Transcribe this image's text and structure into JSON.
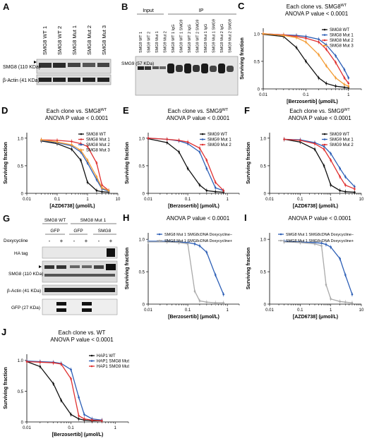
{
  "colors": {
    "black": "#111111",
    "blue": "#2d5fb6",
    "red": "#e03030",
    "orange": "#f39c34",
    "grey": "#aaaaaa"
  },
  "panels": {
    "A": {
      "label": "A",
      "lanes": [
        "SMG8 WT 1",
        "SMG8 WT 2",
        "SMG8 Mut 1",
        "SMG8 Mut 2",
        "SMG8 Mut 3"
      ],
      "rows": [
        "SMG8 (110 KDa)",
        "β-Actin (41 KDa)"
      ]
    },
    "B": {
      "label": "B",
      "input_label": "Input",
      "ip_label": "IP",
      "row": "SMG9 (57 KDa)",
      "lanes": [
        "SMG9 WT 1",
        "SMG9 WT 2",
        "SMG9 Mut 1",
        "SMG9 Mut 2",
        "SMG9 WT 1 IgG",
        "SMG9 WT 1 SMG9",
        "SMG9 WT 2 IgG",
        "SMG9 WT 2 SMG9",
        "SMG9 Mut 1 IgG",
        "SMG9 Mut 1 SMG9",
        "SMG9 Mut 2 IgG",
        "SMG9 Mut 2 SMG9"
      ]
    },
    "G": {
      "label": "G",
      "group1": "SMG8 WT",
      "group2": "SMG8 Mut 1",
      "sub": [
        "GFP",
        "GFP",
        "SMG8"
      ],
      "dox_label": "Doxycycline",
      "dox": [
        "-",
        "+",
        "-",
        "+",
        "-",
        "+"
      ],
      "rows": [
        "HA tag",
        "SMG8 (110 KDa)",
        "β-Actin (41 KDa)",
        "GFP (27 KDa)"
      ]
    }
  },
  "chart_data": [
    {
      "id": "C",
      "label": "C",
      "type": "line",
      "title_line1": "Each clone vs. SMG8",
      "title_sup": "WT",
      "title_line2": "ANOVA P value < 0.0001",
      "xlabel": "[Berzosertib] (μmol/L)",
      "ylabel": "Surviving fraction",
      "xscale": "log",
      "xlim": [
        0.01,
        2
      ],
      "ylim": [
        0,
        1.1
      ],
      "xticks": [
        0.01,
        0.1,
        1
      ],
      "xticklabels": [
        "0.01",
        "0.1",
        "1"
      ],
      "yticks": [
        0,
        0.5,
        1
      ],
      "yticklabels": [
        "0",
        "0.5",
        "1.0"
      ],
      "legend": "top-right",
      "x": [
        0.01,
        0.03,
        0.06,
        0.1,
        0.2,
        0.3,
        0.5,
        0.8,
        1.0
      ],
      "series": [
        {
          "name": "SMG8 WT",
          "color": "#111111",
          "values": [
            0.99,
            0.95,
            0.75,
            0.5,
            0.2,
            0.1,
            0.05,
            0.03,
            0.02
          ]
        },
        {
          "name": "SMG8 Mut 1",
          "color": "#2d5fb6",
          "values": [
            1.0,
            0.98,
            0.97,
            0.95,
            0.9,
            0.8,
            0.6,
            0.35,
            0.2
          ]
        },
        {
          "name": "SMG8 Mut 2",
          "color": "#e03030",
          "values": [
            1.0,
            0.98,
            0.95,
            0.92,
            0.85,
            0.72,
            0.48,
            0.2,
            0.1
          ]
        },
        {
          "name": "SMG8 Mut 3",
          "color": "#f39c34",
          "values": [
            1.0,
            0.97,
            0.93,
            0.85,
            0.62,
            0.42,
            0.2,
            0.08,
            0.05
          ]
        }
      ]
    },
    {
      "id": "D",
      "label": "D",
      "type": "line",
      "title_line1": "Each clone vs. SMG8",
      "title_sup": "WT",
      "title_line2": "ANOVA P value < 0.0001",
      "xlabel": "[AZD6738] (μmol/L)",
      "ylabel": "Surviving fraction",
      "xscale": "log",
      "xlim": [
        0.01,
        10
      ],
      "ylim": [
        0,
        1.1
      ],
      "xticks": [
        0.01,
        0.1,
        1,
        10
      ],
      "xticklabels": [
        "0.01",
        "0.1",
        "1",
        "10"
      ],
      "yticks": [
        0,
        0.5,
        1
      ],
      "yticklabels": [
        "0",
        "0.5",
        "1.0"
      ],
      "legend": "top-right",
      "x": [
        0.03,
        0.1,
        0.3,
        0.6,
        1,
        2,
        3,
        5
      ],
      "series": [
        {
          "name": "SMG8 WT",
          "color": "#111111",
          "values": [
            0.95,
            0.9,
            0.8,
            0.6,
            0.2,
            0.05,
            0.03,
            0.02
          ]
        },
        {
          "name": "SMG8 Mut 1",
          "color": "#e03030",
          "values": [
            0.97,
            0.96,
            0.94,
            0.9,
            0.85,
            0.55,
            0.15,
            0.05
          ]
        },
        {
          "name": "SMG8 Mut 2",
          "color": "#2d5fb6",
          "values": [
            0.96,
            0.92,
            0.86,
            0.75,
            0.55,
            0.25,
            0.08,
            0.04
          ]
        },
        {
          "name": "SMG8 Mut 3",
          "color": "#f39c34",
          "values": [
            0.97,
            0.93,
            0.88,
            0.78,
            0.6,
            0.3,
            0.1,
            0.05
          ]
        }
      ]
    },
    {
      "id": "E",
      "label": "E",
      "type": "line",
      "title_line1": "Each clone vs. SMG9",
      "title_sup": "WT",
      "title_line2": "ANOVA P value < 0.0001",
      "xlabel": "[Berzosertib] (μmol/L)",
      "ylabel": "Surviving fraction",
      "xscale": "log",
      "xlim": [
        0.01,
        2
      ],
      "ylim": [
        0,
        1.1
      ],
      "xticks": [
        0.01,
        0.1,
        1
      ],
      "xticklabels": [
        "0.01",
        "0.1",
        "1"
      ],
      "yticks": [
        0,
        0.5,
        1
      ],
      "yticklabels": [
        "0",
        "0.5",
        "1.0"
      ],
      "legend": "top-right",
      "x": [
        0.01,
        0.03,
        0.06,
        0.1,
        0.2,
        0.3,
        0.5,
        0.8
      ],
      "series": [
        {
          "name": "SMG9 WT",
          "color": "#111111",
          "values": [
            0.99,
            0.92,
            0.75,
            0.45,
            0.15,
            0.05,
            0.03,
            0.02
          ]
        },
        {
          "name": "SMG9 Mut 1",
          "color": "#2d5fb6",
          "values": [
            1.0,
            0.98,
            0.95,
            0.9,
            0.75,
            0.45,
            0.1,
            0.05
          ]
        },
        {
          "name": "SMG9 Mut 2",
          "color": "#e03030",
          "values": [
            1.0,
            0.98,
            0.96,
            0.93,
            0.82,
            0.6,
            0.2,
            0.05
          ]
        }
      ]
    },
    {
      "id": "F",
      "label": "F",
      "type": "line",
      "title_line1": "Each clone vs. SMG9",
      "title_sup": "WT",
      "title_line2": "ANOVA P value < 0.0001",
      "xlabel": "[AZD6738] (μmol/L)",
      "ylabel": "Surviving fraction",
      "xscale": "log",
      "xlim": [
        0.01,
        10
      ],
      "ylim": [
        0,
        1.1
      ],
      "xticks": [
        0.01,
        0.1,
        1,
        10
      ],
      "xticklabels": [
        "0.01",
        "0.1",
        "1",
        "10"
      ],
      "yticks": [
        0,
        0.5,
        1
      ],
      "yticklabels": [
        "0",
        "0.5",
        "1.0"
      ],
      "legend": "top-right",
      "x": [
        0.03,
        0.1,
        0.3,
        0.6,
        1,
        2,
        3,
        6
      ],
      "series": [
        {
          "name": "SMG9 WT",
          "color": "#111111",
          "values": [
            0.98,
            0.93,
            0.8,
            0.5,
            0.15,
            0.05,
            0.03,
            0.02
          ]
        },
        {
          "name": "SMG9 Mut 1",
          "color": "#2d5fb6",
          "values": [
            0.98,
            0.97,
            0.92,
            0.85,
            0.72,
            0.45,
            0.3,
            0.12
          ]
        },
        {
          "name": "SMG9 Mut 2",
          "color": "#e03030",
          "values": [
            0.98,
            0.96,
            0.9,
            0.8,
            0.6,
            0.3,
            0.15,
            0.08
          ]
        }
      ]
    },
    {
      "id": "H",
      "label": "H",
      "type": "line",
      "title_line1": "ANOVA P value < 0.0001",
      "xlabel": "[Berzosertib] (μmol/L)",
      "ylabel": "Surviving fraction",
      "xscale": "log",
      "xlim": [
        0.01,
        2
      ],
      "ylim": [
        0,
        1.1
      ],
      "xticks": [
        0.01,
        0.1,
        1
      ],
      "xticklabels": [
        "0.01",
        "0.1",
        "1"
      ],
      "yticks": [
        0,
        0.5,
        1
      ],
      "yticklabels": [
        "0",
        "0.5",
        "1.0"
      ],
      "legend": "top",
      "x": [
        0.01,
        0.03,
        0.06,
        0.1,
        0.15,
        0.2,
        0.3,
        0.5,
        0.8
      ],
      "series": [
        {
          "name": "SMG8 Mut 1 SMG8cDNA Doxycycline−",
          "color": "#2d5fb6",
          "values": [
            0.97,
            0.97,
            0.96,
            0.95,
            0.93,
            0.9,
            0.8,
            0.45,
            0.15
          ]
        },
        {
          "name": "SMG8 Mut 1 SMG8cDNA Doxycycline+",
          "color": "#aaaaaa",
          "values": [
            0.96,
            0.96,
            0.95,
            0.93,
            0.2,
            0.05,
            0.03,
            0.02,
            0.02
          ]
        }
      ]
    },
    {
      "id": "I",
      "label": "I",
      "type": "line",
      "title_line1": "ANOVA P value < 0.0001",
      "xlabel": "[AZD6738] (μmol/L)",
      "ylabel": "Surviving fraction",
      "xscale": "log",
      "xlim": [
        0.01,
        10
      ],
      "ylim": [
        0,
        1.1
      ],
      "xticks": [
        0.01,
        0.1,
        1,
        10
      ],
      "xticklabels": [
        "0.01",
        "0.1",
        "1",
        "10"
      ],
      "yticks": [
        0,
        0.5,
        1
      ],
      "yticklabels": [
        "0",
        "0.5",
        "1.0"
      ],
      "legend": "top",
      "x": [
        0.03,
        0.1,
        0.3,
        0.5,
        0.7,
        1,
        2,
        3,
        5
      ],
      "series": [
        {
          "name": "SMG8 Mut 1 SMG8cDNA Doxycycline−",
          "color": "#2d5fb6",
          "values": [
            0.97,
            0.96,
            0.95,
            0.94,
            0.92,
            0.88,
            0.7,
            0.45,
            0.15
          ]
        },
        {
          "name": "SMG8 Mut 1 SMG8cDNA Doxycycline+",
          "color": "#aaaaaa",
          "values": [
            0.96,
            0.95,
            0.93,
            0.9,
            0.3,
            0.08,
            0.04,
            0.03,
            0.02
          ]
        }
      ]
    },
    {
      "id": "J",
      "label": "J",
      "type": "line",
      "title_line1": "Each clone vs. WT",
      "title_line2": "ANOVA P value < 0.0001",
      "xlabel": "[Berzosertib] (μmol/L)",
      "ylabel": "Surviving fraction",
      "xscale": "log",
      "xlim": [
        0.01,
        2
      ],
      "ylim": [
        0,
        1.1
      ],
      "xticks": [
        0.01,
        0.1,
        1
      ],
      "xticklabels": [
        "0.01",
        "0.1",
        "1"
      ],
      "yticks": [
        0,
        0.5,
        1
      ],
      "yticklabels": [
        "0",
        "0.5",
        "1.0"
      ],
      "legend": "top-right",
      "x": [
        0.01,
        0.02,
        0.04,
        0.06,
        0.1,
        0.15,
        0.2,
        0.3,
        0.5
      ],
      "series": [
        {
          "name": "HAP1 WT",
          "color": "#111111",
          "values": [
            0.98,
            0.9,
            0.62,
            0.35,
            0.12,
            0.05,
            0.03,
            0.02,
            0.02
          ]
        },
        {
          "name": "HAP1 SMG8 Mut",
          "color": "#2d5fb6",
          "values": [
            0.99,
            0.98,
            0.97,
            0.95,
            0.85,
            0.4,
            0.12,
            0.05,
            0.03
          ]
        },
        {
          "name": "HAP1 SMG9 Mut",
          "color": "#e03030",
          "values": [
            0.98,
            0.97,
            0.96,
            0.94,
            0.7,
            0.1,
            0.05,
            0.03,
            0.02
          ]
        }
      ]
    }
  ]
}
